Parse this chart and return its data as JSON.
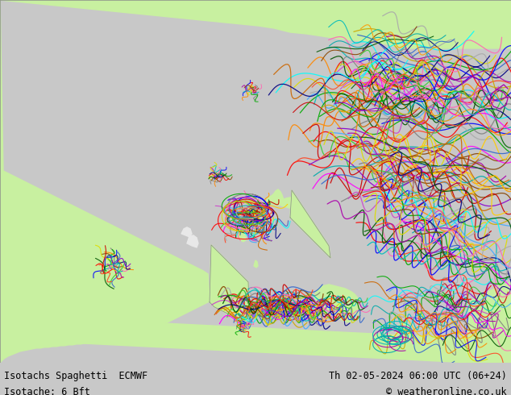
{
  "title_left_line1": "Isotachs Spaghetti  ECMWF",
  "title_left_line2": "Isotache: 6 Bft",
  "title_right_line1": "Th 02-05-2024 06:00 UTC (06+24)",
  "title_right_line2": "© weatheronline.co.uk",
  "bg_color": "#c8c8c8",
  "land_color": "#c8f0a0",
  "sea_color": "#d0d0d0",
  "border_color": "#888888",
  "bottom_bar_color": "#c0c0c0",
  "bottom_text_color": "#000000",
  "fig_width": 6.34,
  "fig_height": 4.9,
  "dpi": 100,
  "spaghetti_colors": [
    "#808080",
    "#ff0000",
    "#0000ff",
    "#00aa00",
    "#ff8800",
    "#aa00aa",
    "#00bbbb",
    "#dddd00",
    "#ff69b4",
    "#884400",
    "#000080",
    "#005500",
    "#cc0000",
    "#3366cc",
    "#33cc33",
    "#ff4422",
    "#8800cc",
    "#00aaaa",
    "#ccaa00",
    "#aaaaaa",
    "#ff00ff",
    "#00ffff",
    "#ff9900",
    "#006600",
    "#cc44cc",
    "#44aaff",
    "#ffcc00",
    "#cc6600"
  ]
}
